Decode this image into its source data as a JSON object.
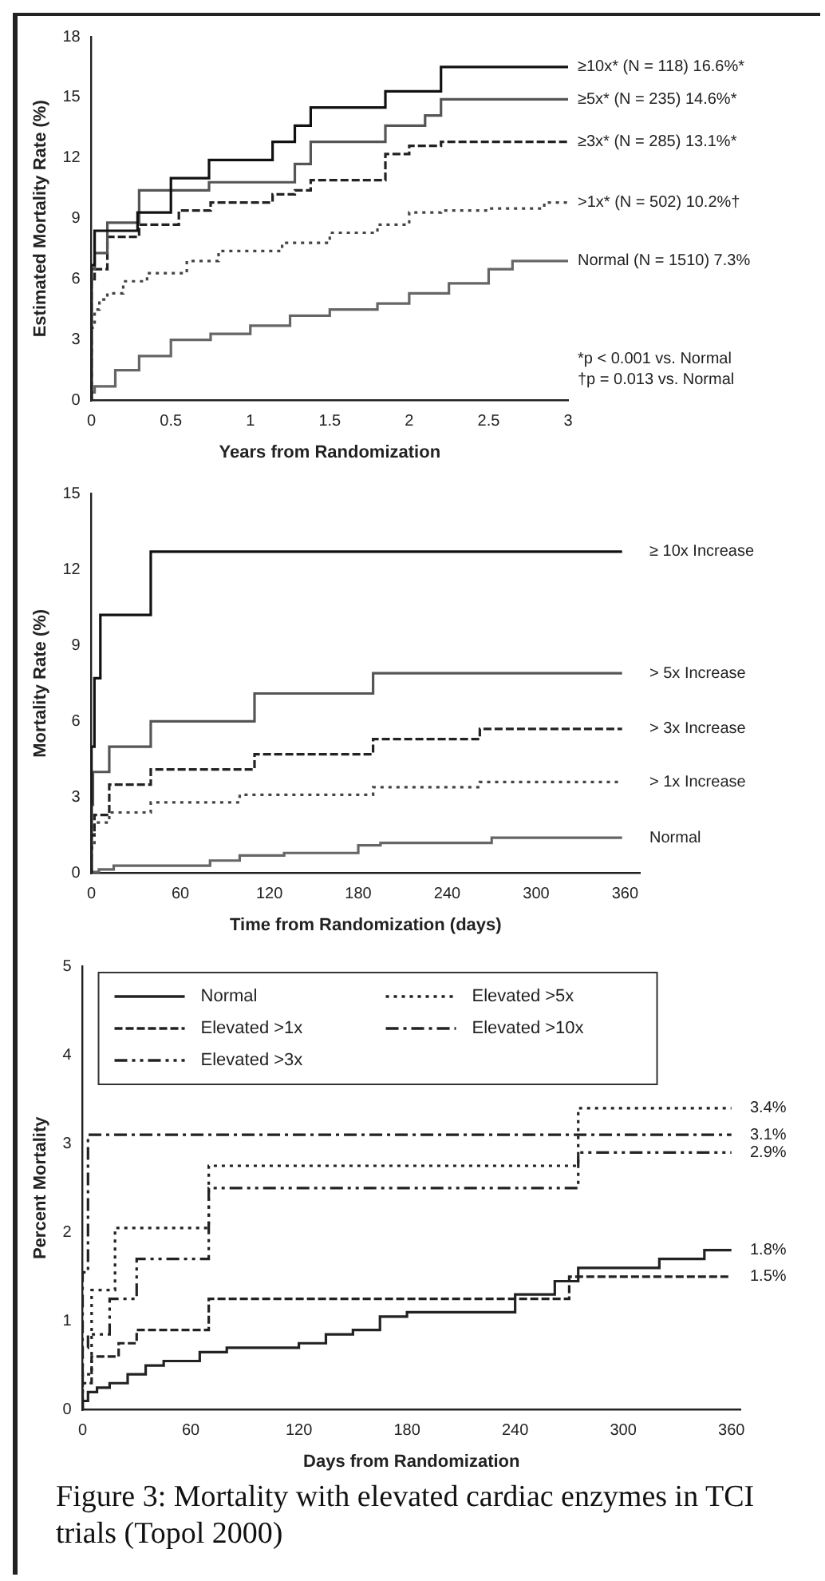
{
  "chart_data": [
    {
      "type": "step",
      "xlabel": "Years from Randomization",
      "ylabel": "Estimated Mortality Rate (%)",
      "xlim": [
        0,
        3
      ],
      "xticks": [
        0,
        0.5,
        1,
        1.5,
        2,
        2.5,
        3
      ],
      "ylim": [
        0,
        18
      ],
      "yticks": [
        0,
        3,
        6,
        9,
        12,
        15,
        18
      ],
      "legend": false,
      "annotations": [
        "*p < 0.001 vs. Normal",
        "†p = 0.013 vs. Normal"
      ],
      "series": [
        {
          "name": "≥10x* (N = 118) 16.6%*",
          "color": "#111111",
          "line_style": "solid",
          "x": [
            0,
            0.02,
            0.29,
            0.5,
            0.74,
            1.14,
            1.28,
            1.38,
            1.85,
            2.2,
            2.9,
            3
          ],
          "values": [
            0,
            6.7,
            8.4,
            9.3,
            11.0,
            11.9,
            12.8,
            13.6,
            14.5,
            15.3,
            16.5,
            16.5
          ]
        },
        {
          "name": "≥5x* (N = 235) 14.6%*",
          "color": "#555555",
          "line_style": "solid",
          "x": [
            0,
            0.02,
            0.1,
            0.3,
            0.74,
            1.28,
            1.38,
            1.85,
            2.1,
            2.2,
            2.9,
            3
          ],
          "values": [
            0,
            6.5,
            7.3,
            8.8,
            10.4,
            10.8,
            11.7,
            12.8,
            13.6,
            14.1,
            14.9,
            14.9
          ]
        },
        {
          "name": "≥3x* (N = 285) 13.1%*",
          "color": "#222222",
          "line_style": "dashed",
          "x": [
            0,
            0.02,
            0.1,
            0.3,
            0.55,
            0.75,
            1.14,
            1.28,
            1.38,
            1.85,
            2.0,
            2.2,
            2.9,
            3
          ],
          "values": [
            0,
            6.0,
            6.5,
            8.1,
            8.7,
            9.4,
            9.8,
            10.2,
            10.4,
            10.9,
            12.2,
            12.6,
            12.8,
            12.8
          ]
        },
        {
          "name": ">1x* (N = 502) 10.2%†",
          "color": "#444444",
          "line_style": "dotted",
          "x": [
            0,
            0.02,
            0.05,
            0.1,
            0.2,
            0.35,
            0.6,
            0.8,
            1.2,
            1.5,
            1.8,
            2.0,
            2.2,
            2.5,
            2.85,
            3
          ],
          "values": [
            0,
            3.6,
            4.5,
            5.0,
            5.3,
            5.9,
            6.3,
            6.9,
            7.4,
            7.8,
            8.3,
            8.7,
            9.3,
            9.4,
            9.5,
            9.8
          ]
        },
        {
          "name": "Normal (N = 1510) 7.3%",
          "color": "#666666",
          "line_style": "solid",
          "x": [
            0,
            0.02,
            0.15,
            0.3,
            0.5,
            0.75,
            1.0,
            1.25,
            1.5,
            1.8,
            2.0,
            2.25,
            2.5,
            2.65,
            2.8,
            3
          ],
          "values": [
            0,
            0.4,
            0.7,
            1.5,
            2.2,
            3.0,
            3.3,
            3.7,
            4.2,
            4.5,
            4.8,
            5.3,
            5.8,
            6.5,
            6.9,
            6.9
          ]
        }
      ]
    },
    {
      "type": "step",
      "xlabel": "Time from Randomization (days)",
      "ylabel": "Mortality Rate (%)",
      "xlim": [
        0,
        370
      ],
      "xticks": [
        0,
        60,
        120,
        180,
        240,
        300,
        360
      ],
      "ylim": [
        0,
        15
      ],
      "yticks": [
        0,
        3,
        6,
        9,
        12,
        15
      ],
      "legend": false,
      "series": [
        {
          "name": "≥ 10x Increase",
          "color": "#111111",
          "line_style": "solid",
          "x": [
            0,
            2,
            6,
            40,
            108,
            358
          ],
          "values": [
            0,
            5.0,
            7.7,
            10.2,
            12.7,
            12.7
          ]
        },
        {
          "name": "> 5x Increase",
          "color": "#555555",
          "line_style": "solid",
          "x": [
            0,
            1,
            12,
            40,
            110,
            190,
            357,
            358
          ],
          "values": [
            0,
            2.7,
            4.0,
            5.0,
            6.0,
            7.1,
            7.9,
            7.9
          ]
        },
        {
          "name": "> 3x Increase",
          "color": "#222222",
          "line_style": "dashed",
          "x": [
            0,
            2,
            12,
            40,
            110,
            190,
            262,
            357,
            358
          ],
          "values": [
            0,
            1.5,
            2.3,
            3.5,
            4.1,
            4.7,
            5.3,
            5.7,
            5.7
          ]
        },
        {
          "name": "> 1x Increase",
          "color": "#444444",
          "line_style": "dotted",
          "x": [
            0,
            2,
            12,
            40,
            100,
            190,
            262,
            357,
            358
          ],
          "values": [
            0,
            1.0,
            2.0,
            2.4,
            2.8,
            3.1,
            3.4,
            3.6,
            3.6
          ]
        },
        {
          "name": "Normal",
          "color": "#666666",
          "line_style": "solid",
          "x": [
            0,
            5,
            15,
            80,
            100,
            130,
            180,
            195,
            270,
            300,
            358
          ],
          "values": [
            0,
            0.05,
            0.15,
            0.3,
            0.5,
            0.7,
            0.8,
            1.1,
            1.2,
            1.4,
            1.4
          ]
        }
      ]
    },
    {
      "type": "step",
      "xlabel": "Days from Randomization",
      "ylabel": "Percent Mortality",
      "xlim": [
        0,
        365
      ],
      "xticks": [
        0,
        60,
        120,
        180,
        240,
        300,
        360
      ],
      "ylim": [
        0,
        5
      ],
      "yticks": [
        0,
        1,
        2,
        3,
        4,
        5
      ],
      "legend": "top",
      "annotations": [
        "Figure 3: Mortality with elevated cardiac enzymes in TCI trials (Topol 2000)"
      ],
      "series": [
        {
          "name": "Normal",
          "color": "#222222",
          "line_style": "solid",
          "x": [
            0,
            3,
            8,
            15,
            25,
            35,
            45,
            65,
            80,
            120,
            135,
            150,
            165,
            180,
            240,
            262,
            275,
            290,
            320,
            345,
            360
          ],
          "values": [
            0,
            0.1,
            0.2,
            0.25,
            0.3,
            0.4,
            0.5,
            0.55,
            0.65,
            0.7,
            0.75,
            0.85,
            0.9,
            1.05,
            1.1,
            1.3,
            1.45,
            1.6,
            1.6,
            1.7,
            1.8
          ],
          "value_labels": [
            null,
            null,
            null,
            null,
            null,
            null,
            null,
            null,
            null,
            null,
            null,
            null,
            null,
            null,
            null,
            null,
            null,
            null,
            null,
            null,
            "1.8%"
          ]
        },
        {
          "name": "Elevated >1x",
          "color": "#222222",
          "line_style": "dashed",
          "x": [
            0,
            5,
            20,
            30,
            70,
            270,
            310,
            360
          ],
          "values": [
            0,
            0.3,
            0.6,
            0.75,
            0.9,
            1.25,
            1.5,
            1.5
          ],
          "value_labels": [
            null,
            null,
            null,
            null,
            null,
            null,
            null,
            "1.5%"
          ]
        },
        {
          "name": "Elevated >3x",
          "color": "#222222",
          "line_style": "dashdotdot",
          "x": [
            0,
            3,
            15,
            30,
            70,
            275,
            310,
            360
          ],
          "values": [
            0,
            0.7,
            0.85,
            1.25,
            1.7,
            2.5,
            2.9,
            2.9
          ],
          "value_labels": [
            null,
            null,
            null,
            null,
            null,
            null,
            null,
            "2.9%"
          ]
        },
        {
          "name": "Elevated >5x",
          "color": "#222222",
          "line_style": "dotted",
          "x": [
            0,
            5,
            18,
            70,
            275,
            312,
            360
          ],
          "values": [
            0,
            0.4,
            1.35,
            2.05,
            2.75,
            3.4,
            3.4
          ],
          "value_labels": [
            null,
            null,
            null,
            null,
            null,
            null,
            "3.4%"
          ]
        },
        {
          "name": "Elevated >10x",
          "color": "#222222",
          "line_style": "dashdot",
          "x": [
            0,
            3,
            18,
            360
          ],
          "values": [
            0,
            1.55,
            3.1,
            3.1
          ],
          "value_labels": [
            null,
            null,
            null,
            "3.1%"
          ]
        }
      ]
    }
  ]
}
